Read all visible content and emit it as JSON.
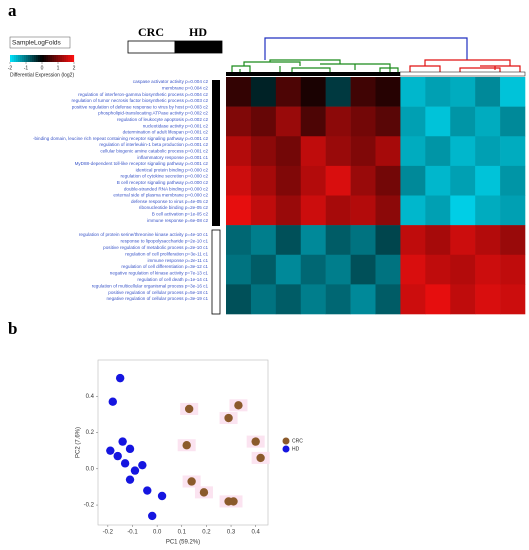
{
  "chart_data": [
    {
      "type": "heatmap",
      "panel": "a",
      "legend_title": "SampleLogFolds",
      "colorbar_label": "Differential Expression (log2)",
      "colorbar_ticks": [
        -2,
        -1,
        0,
        1,
        2
      ],
      "colors": {
        "low": "#00e5ff",
        "mid": "#000000",
        "high": "#ff1010"
      },
      "groups": [
        {
          "name": "CRC",
          "color": "#ffffff",
          "columns": 7
        },
        {
          "name": "HD",
          "color": "#000000",
          "columns": 5
        }
      ],
      "terms_up": [
        "caspase activator activity p=0.004 c2",
        "membrane p=0.004 c2",
        "regulation of interferon-gamma biosynthetic process p=0.004 c2",
        "regulation of tumor necrosis factor biosynthetic process p=0.003 c2",
        "positive regulation of defense response to virus by host p=0.003 c2",
        "phospholipid-translocating ATPase activity p=0.002 c2",
        "regulation of leukocyte apoptosis p=0.002 c2",
        "nucleotidase activity p=0.001 c2",
        "determination of adult lifespan p=0.001 c2",
        "-binding domain, leucine rich repeat containing receptor signaling pathway p=0.001 c2",
        "regulation of interleukin-1 beta production p=0.001 c2",
        "cellular biogenic amine catabolic process p=0.001 c2",
        "inflammatory response p=0.001 c1",
        "MyD88-dependent toll-like receptor signaling pathway p=0.001 c2",
        "identical protein binding p=0.000 c2",
        "regulation of cytokine secretion p=0.000 c2",
        "B cell receptor signaling pathway p=0.000 c2",
        "double-stranded RNA binding p=0.000 c2",
        "external side of plasma membrane p=0.000 c2",
        "defense response to virus p=4e-05 c2",
        "ribonucleotide binding p=2e-05 c2",
        "B cell activation p=1e-05 c2",
        "immune response p=6e-08 c2"
      ],
      "terms_down": [
        "regulation of protein serine/threonine kinase activity p=4e-10 c1",
        "response to lipopolysaccharide p=2e-10 c1",
        "positive regulation of metabolic process p=2e-10 c1",
        "regulation of cell proliferation p=3e-11 c1",
        "immune response p=2e-11 c1",
        "regulation of cell differentiation p=3e-12 c1",
        "negative regulation of kinase activity p=7e-13 c1",
        "regulation of cell death p=1e-14 c1",
        "regulation of multicellular organismal process p=3e-16 c1",
        "positive regulation of cellular process p=5e-18 c1",
        "negative regulation of cellular process p=3e-19 c1"
      ],
      "values": [
        [
          0.4,
          -0.3,
          0.6,
          0.2,
          -0.5,
          0.5,
          0.3,
          -1.6,
          -1.4,
          -1.5,
          -1.2,
          -1.7
        ],
        [
          1.0,
          0.8,
          1.2,
          0.6,
          1.1,
          0.9,
          0.7,
          -1.4,
          -1.7,
          -1.3,
          -1.5,
          -1.2
        ],
        [
          1.4,
          1.1,
          0.9,
          1.5,
          1.2,
          1.0,
          1.3,
          -1.5,
          -1.3,
          -1.6,
          -1.4,
          -1.5
        ],
        [
          1.6,
          1.3,
          1.0,
          1.4,
          1.7,
          1.2,
          0.9,
          -1.2,
          -1.6,
          -1.4,
          -1.7,
          -1.3
        ],
        [
          1.8,
          1.5,
          1.2,
          1.6,
          1.3,
          1.4,
          1.1,
          -1.6,
          -1.4,
          -1.8,
          -1.5,
          -1.4
        ],
        [
          -0.9,
          -1.1,
          -0.7,
          -1.2,
          -0.8,
          -1.0,
          -0.6,
          1.5,
          1.3,
          1.6,
          1.4,
          1.2
        ],
        [
          -1.0,
          -0.8,
          -1.2,
          -0.9,
          -1.1,
          -0.7,
          -1.0,
          1.7,
          1.5,
          1.4,
          1.6,
          1.5
        ],
        [
          -0.7,
          -1.0,
          -0.8,
          -1.1,
          -0.9,
          -1.2,
          -0.8,
          1.6,
          1.8,
          1.5,
          1.7,
          1.6
        ]
      ]
    },
    {
      "type": "scatter",
      "panel": "b",
      "xlabel": "PC1 (59.2%)",
      "ylabel": "PC2 (7.6%)",
      "xlim": [
        -0.24,
        0.45
      ],
      "ylim": [
        -0.31,
        0.6
      ],
      "xticks": [
        -0.2,
        -0.1,
        {
          "value": 0,
          "label": "0.0"
        },
        0.1,
        0.2,
        0.3,
        0.4
      ],
      "yticks": [
        -0.2,
        {
          "value": 0,
          "label": "0.0"
        },
        0.2,
        0.4
      ],
      "legend": "right",
      "series": [
        {
          "name": "CRC",
          "color": "#8b5a2b",
          "x": [
            0.13,
            0.33,
            0.29,
            0.12,
            0.4,
            0.42,
            0.14,
            0.19,
            0.29,
            0.31
          ],
          "values": [
            0.33,
            0.35,
            0.28,
            0.13,
            0.15,
            0.06,
            -0.07,
            -0.13,
            -0.18,
            -0.18
          ]
        },
        {
          "name": "HD",
          "color": "#1515e0",
          "x": [
            -0.15,
            -0.18,
            -0.14,
            -0.19,
            -0.16,
            -0.11,
            -0.13,
            -0.09,
            -0.11,
            -0.06,
            -0.04,
            0.02,
            -0.02
          ],
          "values": [
            0.5,
            0.37,
            0.15,
            0.1,
            0.07,
            0.11,
            0.03,
            -0.01,
            -0.06,
            0.02,
            -0.12,
            -0.15,
            -0.26
          ]
        }
      ]
    }
  ]
}
